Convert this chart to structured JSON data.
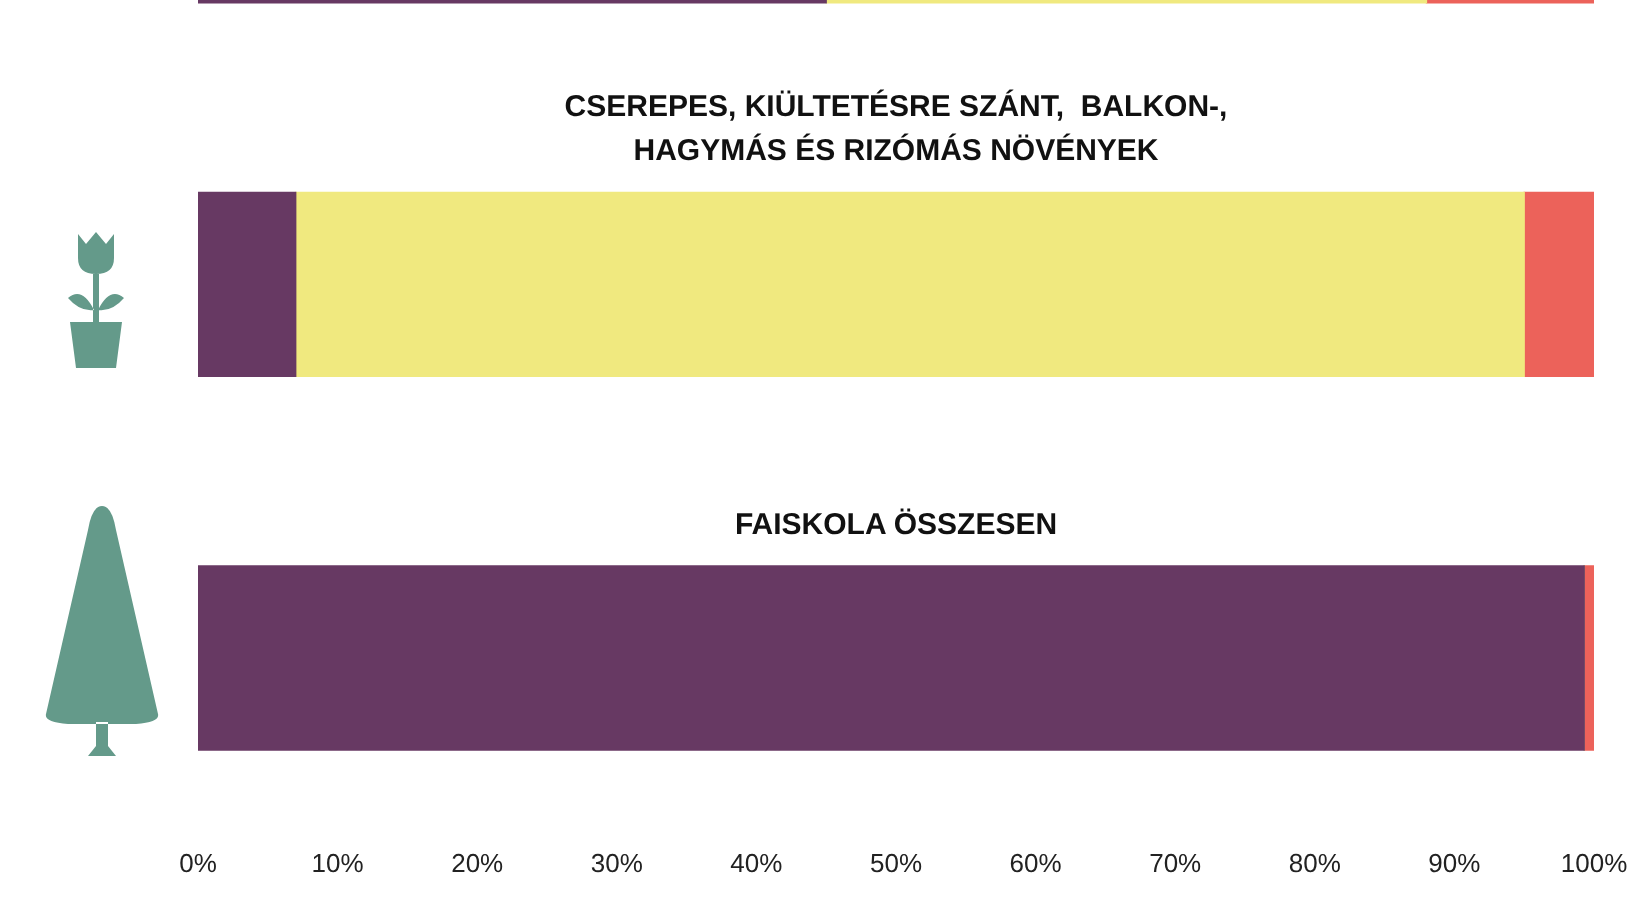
{
  "chart_data": {
    "type": "bar",
    "orientation": "horizontal",
    "stacked": true,
    "categories": [
      null,
      "CSEREPES, KIÜLTETÉSRE SZÁNT,  BALKON-,\nHAGYMÁS ÉS RIZÓMÁS NÖVÉNYEK",
      "FAISKOLA ÖSSZESEN"
    ],
    "series": [
      {
        "color": "#673963",
        "values": [
          45,
          7,
          99.3
        ]
      },
      {
        "color": "#f0e97f",
        "values": [
          43,
          88,
          0
        ]
      },
      {
        "color": "#ec625a",
        "values": [
          12,
          5,
          0.7
        ]
      }
    ],
    "xlim": [
      0,
      100
    ],
    "xticks": [
      {
        "value": 0,
        "label": "0%"
      },
      {
        "value": 10,
        "label": "10%"
      },
      {
        "value": 20,
        "label": "20%"
      },
      {
        "value": 30,
        "label": "30%"
      },
      {
        "value": 40,
        "label": "40%"
      },
      {
        "value": 50,
        "label": "50%"
      },
      {
        "value": 60,
        "label": "60%"
      },
      {
        "value": 70,
        "label": "70%"
      },
      {
        "value": 80,
        "label": "80%"
      },
      {
        "value": 90,
        "label": "90%"
      },
      {
        "value": 100,
        "label": "100%"
      }
    ],
    "tick_labels": "x",
    "grid": false,
    "legend": false
  }
}
